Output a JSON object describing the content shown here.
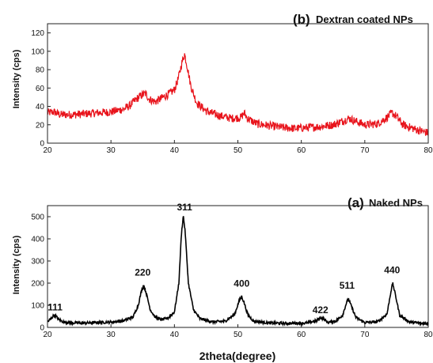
{
  "figure": {
    "xlabel": "2theta(degree)"
  },
  "chart_data": [
    {
      "type": "line",
      "title_tag": "(b)",
      "title": "Dextran coated NPs",
      "xlabel": "",
      "ylabel": "Intensity (cps)",
      "xlim": [
        20,
        80
      ],
      "ylim": [
        0,
        130
      ],
      "xticks": [
        20,
        30,
        40,
        50,
        60,
        70,
        80
      ],
      "yticks": [
        0,
        20,
        40,
        60,
        80,
        100,
        120
      ],
      "grid": false,
      "color": "#e8141c",
      "noise": 4.5,
      "series": [
        {
          "x": [
            20,
            21,
            22,
            24,
            26,
            28,
            30,
            32,
            33,
            34,
            35,
            35.5,
            36,
            37,
            38,
            39,
            40,
            40.6,
            41.2,
            41.6,
            42,
            42.6,
            43.5,
            45,
            47,
            49,
            50.5,
            51,
            51.5,
            53,
            55,
            57,
            59,
            61,
            63,
            65,
            66.5,
            67.5,
            68.5,
            70,
            72,
            73.5,
            74.3,
            75,
            76,
            78,
            79,
            80
          ],
          "y": [
            33,
            34,
            31,
            31,
            32,
            33,
            34,
            37,
            41,
            48,
            53,
            54,
            48,
            45,
            49,
            53,
            58,
            70,
            88,
            97,
            84,
            62,
            44,
            35,
            30,
            27,
            28,
            33,
            27,
            21,
            19,
            17,
            16,
            17,
            18,
            20,
            24,
            27,
            24,
            20,
            21,
            28,
            33,
            29,
            20,
            15,
            13,
            11
          ]
        }
      ]
    },
    {
      "type": "line",
      "title_tag": "(a)",
      "title": "Naked NPs",
      "xlabel": "2theta(degree)",
      "ylabel": "Intensity (cps)",
      "xlim": [
        20,
        80
      ],
      "ylim": [
        0,
        550
      ],
      "xticks": [
        20,
        30,
        40,
        50,
        60,
        70,
        80
      ],
      "yticks": [
        0,
        100,
        200,
        300,
        400,
        500
      ],
      "grid": false,
      "color": "#000000",
      "noise": 6,
      "series": [
        {
          "x": [
            20,
            20.5,
            21,
            21.3,
            21.8,
            22.5,
            24,
            26,
            28,
            30,
            32,
            33.5,
            34.3,
            34.8,
            35.2,
            35.6,
            36.2,
            37,
            38,
            39,
            40,
            40.7,
            41.1,
            41.4,
            41.7,
            42.2,
            43,
            44,
            46,
            48,
            49.5,
            50.2,
            50.6,
            51,
            51.6,
            52.5,
            55,
            58,
            61,
            62.5,
            63,
            63.5,
            64.2,
            65.5,
            66.5,
            67.1,
            67.4,
            67.9,
            68.6,
            70,
            72,
            73.5,
            74.1,
            74.4,
            74.8,
            75.5,
            77,
            79,
            80
          ],
          "y": [
            25,
            38,
            55,
            52,
            35,
            25,
            20,
            20,
            22,
            24,
            30,
            48,
            100,
            165,
            190,
            150,
            80,
            45,
            35,
            42,
            70,
            200,
            420,
            505,
            430,
            200,
            80,
            40,
            25,
            28,
            60,
            120,
            140,
            110,
            55,
            28,
            20,
            18,
            20,
            32,
            45,
            38,
            22,
            30,
            55,
            110,
            130,
            95,
            45,
            22,
            25,
            60,
            160,
            200,
            150,
            55,
            25,
            18,
            18
          ]
        }
      ],
      "annotations": [
        {
          "text": "111",
          "x": 21.2,
          "y": 62
        },
        {
          "text": "220",
          "x": 35.0,
          "y": 220
        },
        {
          "text": "311",
          "x": 41.6,
          "y": 515
        },
        {
          "text": "400",
          "x": 50.6,
          "y": 170
        },
        {
          "text": "422",
          "x": 63.0,
          "y": 50
        },
        {
          "text": "511",
          "x": 67.2,
          "y": 160
        },
        {
          "text": "440",
          "x": 74.3,
          "y": 230
        }
      ]
    }
  ]
}
